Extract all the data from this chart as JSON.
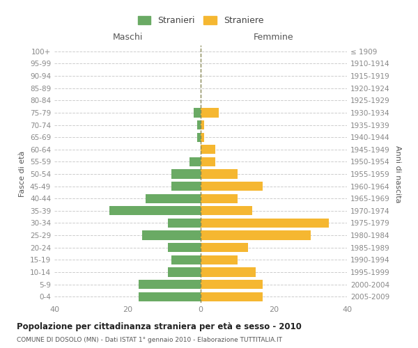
{
  "age_groups": [
    "100+",
    "95-99",
    "90-94",
    "85-89",
    "80-84",
    "75-79",
    "70-74",
    "65-69",
    "60-64",
    "55-59",
    "50-54",
    "45-49",
    "40-44",
    "35-39",
    "30-34",
    "25-29",
    "20-24",
    "15-19",
    "10-14",
    "5-9",
    "0-4"
  ],
  "birth_years": [
    "≤ 1909",
    "1910-1914",
    "1915-1919",
    "1920-1924",
    "1925-1929",
    "1930-1934",
    "1935-1939",
    "1940-1944",
    "1945-1949",
    "1950-1954",
    "1955-1959",
    "1960-1964",
    "1965-1969",
    "1970-1974",
    "1975-1979",
    "1980-1984",
    "1985-1989",
    "1990-1994",
    "1995-1999",
    "2000-2004",
    "2005-2009"
  ],
  "males": [
    0,
    0,
    0,
    0,
    0,
    2,
    1,
    1,
    0,
    3,
    8,
    8,
    15,
    25,
    9,
    16,
    9,
    8,
    9,
    17,
    17
  ],
  "females": [
    0,
    0,
    0,
    0,
    0,
    5,
    1,
    1,
    4,
    4,
    10,
    17,
    10,
    14,
    35,
    30,
    13,
    10,
    15,
    17,
    17
  ],
  "male_color": "#6aaa64",
  "female_color": "#f5b731",
  "background_color": "#ffffff",
  "grid_color": "#cccccc",
  "title": "Popolazione per cittadinanza straniera per età e sesso - 2010",
  "subtitle": "COMUNE DI DOSOLO (MN) - Dati ISTAT 1° gennaio 2010 - Elaborazione TUTTITALIA.IT",
  "ylabel_left": "Fasce di età",
  "ylabel_right": "Anni di nascita",
  "xlabel_left": "Maschi",
  "xlabel_right": "Femmine",
  "legend_male": "Stranieri",
  "legend_female": "Straniere",
  "xlim": 40
}
